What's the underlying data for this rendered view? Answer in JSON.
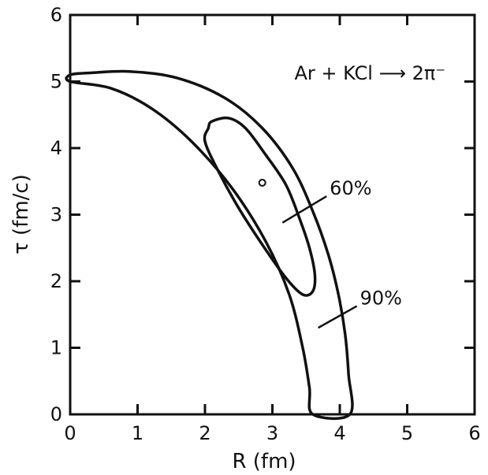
{
  "chart_data": {
    "type": "line",
    "title": "",
    "xlabel": "R  (fm)",
    "ylabel": "τ  (fm/c)",
    "xlim": [
      0,
      6
    ],
    "ylim": [
      0,
      6
    ],
    "x_ticks": [
      "0",
      "1",
      "2",
      "3",
      "4",
      "5",
      "6"
    ],
    "y_ticks": [
      "0",
      "1",
      "2",
      "3",
      "4",
      "5",
      "6"
    ],
    "grid": false,
    "legend": "none",
    "reaction_label": "Ar + KCl ⟶ 2π⁻",
    "annotations": [
      {
        "text": "60%",
        "label_at": [
          3.85,
          3.3
        ],
        "pointer_to": [
          3.15,
          2.88
        ]
      },
      {
        "text": "90%",
        "label_at": [
          4.3,
          1.65
        ],
        "pointer_to": [
          3.68,
          1.3
        ]
      }
    ],
    "best_fit_point": {
      "x": 2.85,
      "y": 3.48
    },
    "series": [
      {
        "name": "90%",
        "closed": true,
        "points": [
          [
            0.0,
            5.0
          ],
          [
            0.6,
            4.9
          ],
          [
            1.2,
            4.6
          ],
          [
            1.8,
            4.1
          ],
          [
            2.4,
            3.4
          ],
          [
            2.9,
            2.6
          ],
          [
            3.25,
            1.8
          ],
          [
            3.45,
            1.0
          ],
          [
            3.55,
            0.4
          ],
          [
            3.6,
            0.0
          ],
          [
            4.15,
            0.0
          ],
          [
            4.13,
            0.6
          ],
          [
            4.08,
            1.2
          ],
          [
            3.98,
            1.8
          ],
          [
            3.83,
            2.4
          ],
          [
            3.6,
            3.05
          ],
          [
            3.3,
            3.7
          ],
          [
            2.85,
            4.3
          ],
          [
            2.3,
            4.75
          ],
          [
            1.6,
            5.05
          ],
          [
            0.9,
            5.15
          ],
          [
            0.3,
            5.13
          ],
          [
            0.0,
            5.1
          ]
        ]
      },
      {
        "name": "60%",
        "closed": true,
        "points": [
          [
            2.05,
            4.3
          ],
          [
            2.0,
            4.1
          ],
          [
            2.2,
            3.65
          ],
          [
            2.5,
            3.1
          ],
          [
            2.85,
            2.55
          ],
          [
            3.2,
            2.05
          ],
          [
            3.45,
            1.8
          ],
          [
            3.6,
            1.85
          ],
          [
            3.63,
            2.1
          ],
          [
            3.55,
            2.5
          ],
          [
            3.4,
            2.95
          ],
          [
            3.2,
            3.45
          ],
          [
            2.9,
            3.9
          ],
          [
            2.6,
            4.3
          ],
          [
            2.35,
            4.45
          ],
          [
            2.1,
            4.4
          ]
        ]
      }
    ]
  }
}
